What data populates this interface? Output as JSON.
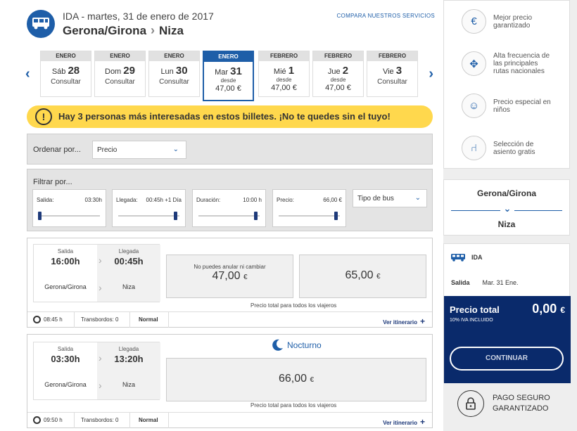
{
  "header": {
    "ida_date": "IDA - martes, 31 de enero de 2017",
    "origin": "Gerona/Girona",
    "destination": "Niza",
    "compare_link": "COMPARA NUESTROS SERVICIOS"
  },
  "dates": [
    {
      "month": "ENERO",
      "weekday": "Sáb",
      "day": "28",
      "status": "Consultar",
      "selected": false
    },
    {
      "month": "ENERO",
      "weekday": "Dom",
      "day": "29",
      "status": "Consultar",
      "selected": false
    },
    {
      "month": "ENERO",
      "weekday": "Lun",
      "day": "30",
      "status": "Consultar",
      "selected": false
    },
    {
      "month": "ENERO",
      "weekday": "Mar",
      "day": "31",
      "from": "desde",
      "price": "47,00 €",
      "selected": true
    },
    {
      "month": "FEBRERO",
      "weekday": "Mié",
      "day": "1",
      "from": "desde",
      "price": "47,00 €",
      "selected": false
    },
    {
      "month": "FEBRERO",
      "weekday": "Jue",
      "day": "2",
      "from": "desde",
      "price": "47,00 €",
      "selected": false
    },
    {
      "month": "FEBRERO",
      "weekday": "Vie",
      "day": "3",
      "status": "Consultar",
      "selected": false
    }
  ],
  "alert": {
    "icon": "exclamation-icon",
    "text": "Hay 3 personas más interesadas en estos billetes. ¡No te quedes sin el tuyo!"
  },
  "sort": {
    "label": "Ordenar por...",
    "value": "Precio"
  },
  "filter": {
    "label": "Filtrar por...",
    "cards": [
      {
        "label": "Salida:",
        "value": "03:30h"
      },
      {
        "label": "Llegada:",
        "value": "00:45h +1 Día"
      },
      {
        "label": "Duración:",
        "value": "10:00 h"
      },
      {
        "label": "Precio:",
        "value": "66,00 €"
      }
    ],
    "bus_type": "Tipo de bus"
  },
  "trips": [
    {
      "dep_label": "Salida",
      "dep_time": "16:00h",
      "dep_city": "Gerona/Girona",
      "arr_label": "Llegada",
      "arr_time": "00:45h",
      "arr_city": "Niza",
      "fare1_note": "No puedes anular ni cambiar",
      "fare1_price": "47,00",
      "fare1_cur": "€",
      "fare2_price": "65,00",
      "fare2_cur": "€",
      "total_note": "Precio total para todos los viajeros",
      "duration": "08:45 h",
      "transfers": "Transbordos: 0",
      "class": "Normal",
      "itinerary": "Ver itinerario"
    },
    {
      "badge": "Nocturno",
      "dep_label": "Salida",
      "dep_time": "03:30h",
      "dep_city": "Gerona/Girona",
      "arr_label": "Llegada",
      "arr_time": "13:20h",
      "arr_city": "Niza",
      "fare_price": "66,00",
      "fare_cur": "€",
      "total_note": "Precio total para todos los viajeros",
      "duration": "09:50 h",
      "transfers": "Transbordos: 0",
      "class": "Normal",
      "itinerary": "Ver itinerario"
    }
  ],
  "sidebar": {
    "features": [
      {
        "icon": "euro-badge-icon",
        "text": "Mejor precio garantizado"
      },
      {
        "icon": "route-map-icon",
        "text": "Alta frecuencia de las principales rutas nacionales"
      },
      {
        "icon": "child-icon",
        "text": "Precio especial en niños"
      },
      {
        "icon": "seat-icon",
        "text": "Selección de asiento gratis"
      }
    ],
    "route_from": "Gerona/Girona",
    "route_to": "Niza",
    "summary_label": "IDA",
    "salida_label": "Salida",
    "salida_value": "Mar. 31 Ene.",
    "total_label": "Precio total",
    "total_sub": "10% IVA INCLUIDO",
    "total_amount": "0,00",
    "total_cur": "€",
    "continue": "CONTINUAR",
    "secure_line1": "PAGO SEGURO",
    "secure_line2": "GARANTIZADO"
  },
  "colors": {
    "brand": "#1e5ea8",
    "dark": "#0a2a6b",
    "alert": "#ffd84d"
  }
}
